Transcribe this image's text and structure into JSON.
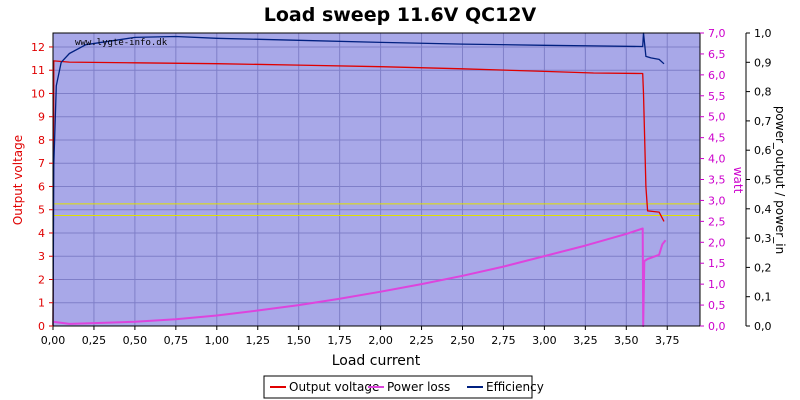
{
  "chart_data": {
    "type": "line",
    "title": "Load sweep 11.6V QC12V",
    "watermark": "www.lygte-info.dk",
    "xlabel": "Load current",
    "xlim": [
      0,
      3.95
    ],
    "x_ticks": [
      "0,00",
      "0,25",
      "0,50",
      "0,75",
      "1,00",
      "1,25",
      "1,50",
      "1,75",
      "2,00",
      "2,25",
      "2,50",
      "2,75",
      "3,00",
      "3,25",
      "3,50",
      "3,75"
    ],
    "y_left": {
      "label": "Output voltage",
      "color": "#e00000",
      "lim": [
        0,
        12.6
      ],
      "ticks": [
        "0",
        "1",
        "2",
        "3",
        "4",
        "5",
        "6",
        "7",
        "8",
        "9",
        "10",
        "11",
        "12"
      ]
    },
    "y_watt": {
      "label": "watt",
      "color": "#cc00cc",
      "lim": [
        0,
        7.0
      ],
      "ticks": [
        "0,0",
        "0,5",
        "1,0",
        "1,5",
        "2,0",
        "2,5",
        "3,0",
        "3,5",
        "4,0",
        "4,5",
        "5,0",
        "5,5",
        "6,0",
        "6,5",
        "7,0"
      ]
    },
    "y_eff": {
      "label": "power_output / power_in",
      "color": "#000000",
      "lim": [
        0,
        1.0
      ],
      "ticks": [
        "0,0",
        "0,1",
        "0,2",
        "0,3",
        "0,4",
        "0,5",
        "0,6",
        "0,7",
        "0,8",
        "0,9",
        "1,0"
      ]
    },
    "reference_lines": {
      "color": "#e0e000",
      "voltage_values": [
        5.25,
        4.75
      ]
    },
    "plot_background": "#a8a8e8",
    "grid": true,
    "legend_position": "bottom-center",
    "series": [
      {
        "name": "Output voltage",
        "axis": "voltage",
        "color": "#e00000",
        "points": [
          [
            0,
            0
          ],
          [
            0.005,
            11.4
          ],
          [
            0.1,
            11.35
          ],
          [
            0.5,
            11.32
          ],
          [
            1.0,
            11.28
          ],
          [
            1.5,
            11.22
          ],
          [
            2.0,
            11.15
          ],
          [
            2.5,
            11.06
          ],
          [
            3.0,
            10.95
          ],
          [
            3.3,
            10.88
          ],
          [
            3.6,
            10.86
          ],
          [
            3.605,
            10.0
          ],
          [
            3.62,
            6.0
          ],
          [
            3.63,
            4.95
          ],
          [
            3.7,
            4.9
          ],
          [
            3.73,
            4.5
          ]
        ]
      },
      {
        "name": "Power loss",
        "axis": "watt",
        "color": "#dd44dd",
        "points": [
          [
            0,
            0.1
          ],
          [
            0.1,
            0.05
          ],
          [
            0.25,
            0.07
          ],
          [
            0.5,
            0.1
          ],
          [
            0.75,
            0.16
          ],
          [
            1.0,
            0.25
          ],
          [
            1.25,
            0.37
          ],
          [
            1.5,
            0.5
          ],
          [
            1.75,
            0.65
          ],
          [
            2.0,
            0.82
          ],
          [
            2.25,
            1.0
          ],
          [
            2.5,
            1.2
          ],
          [
            2.75,
            1.42
          ],
          [
            3.0,
            1.67
          ],
          [
            3.25,
            1.92
          ],
          [
            3.5,
            2.2
          ],
          [
            3.6,
            2.33
          ],
          [
            3.603,
            0.0
          ],
          [
            3.61,
            1.55
          ],
          [
            3.63,
            1.6
          ],
          [
            3.7,
            1.7
          ],
          [
            3.72,
            1.95
          ],
          [
            3.74,
            2.05
          ]
        ]
      },
      {
        "name": "Efficiency",
        "axis": "efficiency",
        "color": "#002080",
        "points": [
          [
            0,
            0
          ],
          [
            0.005,
            0.55
          ],
          [
            0.02,
            0.82
          ],
          [
            0.05,
            0.9
          ],
          [
            0.1,
            0.93
          ],
          [
            0.2,
            0.96
          ],
          [
            0.5,
            0.985
          ],
          [
            0.75,
            0.988
          ],
          [
            1.0,
            0.982
          ],
          [
            1.5,
            0.975
          ],
          [
            2.0,
            0.968
          ],
          [
            2.5,
            0.962
          ],
          [
            3.0,
            0.958
          ],
          [
            3.3,
            0.956
          ],
          [
            3.6,
            0.954
          ],
          [
            3.605,
            1.0
          ],
          [
            3.62,
            0.92
          ],
          [
            3.65,
            0.915
          ],
          [
            3.7,
            0.91
          ],
          [
            3.73,
            0.895
          ]
        ]
      }
    ]
  }
}
